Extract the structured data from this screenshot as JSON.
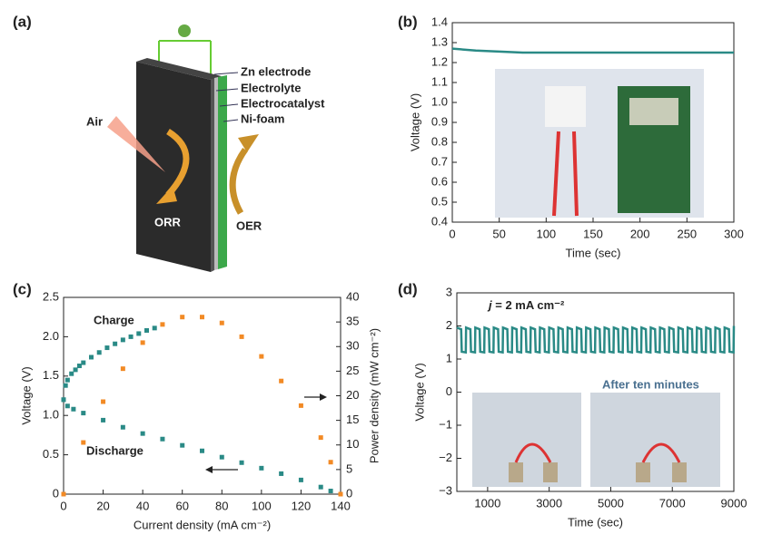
{
  "diagram": {
    "panel": "(a)",
    "layers": [
      "Zn electrode",
      "Electrolyte",
      "Electrocatalyst",
      "Ni-foam"
    ],
    "left": "Air",
    "reaction_left": "ORR",
    "reaction_right": "OER"
  },
  "chart_data": [
    {
      "type": "line",
      "panel": "(b)",
      "xlabel": "Time (sec)",
      "ylabel": "Voltage (V)",
      "color": "#2a8a86",
      "x": [
        0,
        25,
        50,
        75,
        100,
        125,
        150,
        175,
        200,
        225,
        250,
        275,
        300
      ],
      "values": [
        1.27,
        1.26,
        1.255,
        1.25,
        1.25,
        1.25,
        1.25,
        1.25,
        1.25,
        1.25,
        1.25,
        1.25,
        1.25
      ],
      "xlim": [
        0,
        300
      ],
      "xticks": [
        0,
        50,
        100,
        150,
        200,
        250,
        300
      ],
      "ylim": [
        0.4,
        1.4
      ],
      "yticks": [
        0.4,
        0.5,
        0.6,
        0.7,
        0.8,
        0.9,
        {
          "value": 1,
          "label": "1.0"
        },
        1.1,
        1.2,
        1.3,
        1.4
      ]
    },
    {
      "type": "scatter",
      "panel": "(c)",
      "xlabel": "Current density (mA cm⁻²)",
      "ylabel": "Voltage (V)",
      "y2label": "Power density (mW cm⁻²)",
      "xlim": [
        0,
        140
      ],
      "xticks": [
        0,
        20,
        40,
        60,
        80,
        100,
        120,
        140
      ],
      "ylim": [
        0,
        2.5
      ],
      "yticks": [
        0,
        0.5,
        {
          "value": 1,
          "label": "1.0"
        },
        1.5,
        {
          "value": 2,
          "label": "2.0"
        },
        2.5
      ],
      "y2lim": [
        0,
        40
      ],
      "y2ticks": [
        0,
        5,
        10,
        15,
        20,
        25,
        30,
        35,
        40
      ],
      "series": [
        {
          "name": "Charge",
          "color": "#2a8a86",
          "x": [
            0,
            1,
            2,
            4,
            6,
            8,
            10,
            14,
            18,
            22,
            26,
            30,
            34,
            38,
            42,
            46
          ],
          "values": [
            1.2,
            1.38,
            1.45,
            1.53,
            1.58,
            1.63,
            1.67,
            1.74,
            1.8,
            1.86,
            1.91,
            1.96,
            2.0,
            2.04,
            2.08,
            2.11
          ]
        },
        {
          "name": "Discharge",
          "color": "#2a8a86",
          "x": [
            0,
            2,
            5,
            10,
            20,
            30,
            40,
            50,
            60,
            70,
            80,
            90,
            100,
            110,
            120,
            130,
            135,
            140
          ],
          "values": [
            1.2,
            1.12,
            1.08,
            1.03,
            0.94,
            0.85,
            0.77,
            0.7,
            0.62,
            0.55,
            0.47,
            0.4,
            0.33,
            0.26,
            0.18,
            0.09,
            0.04,
            0
          ]
        },
        {
          "color": "#f28a25",
          "axis": "y2",
          "x": [
            0,
            10,
            20,
            30,
            40,
            50,
            60,
            70,
            80,
            90,
            100,
            110,
            120,
            130,
            135,
            140
          ],
          "values": [
            0,
            10.5,
            18.8,
            25.5,
            30.8,
            34.5,
            36,
            36,
            34.8,
            32,
            28,
            23,
            18,
            11.5,
            6.5,
            0
          ]
        }
      ]
    },
    {
      "type": "line",
      "panel": "(d)",
      "xlabel": "Time (sec)",
      "ylabel": "Voltage (V)",
      "color": "#2a8a86",
      "annotations": [
        "j",
        " = 2 mA cm⁻²",
        "After ten minutes"
      ],
      "x": [
        0,
        140,
        160,
        290,
        300,
        440,
        460,
        590,
        600,
        740,
        760,
        890,
        900,
        1040,
        1060,
        1190,
        1200,
        1340,
        1360,
        1490,
        1500,
        1640,
        1660,
        1790,
        1800,
        1940,
        1960,
        2090,
        2100,
        2240,
        2260,
        2390,
        2400,
        2540,
        2560,
        2690,
        2700,
        2840,
        2860,
        2990,
        3000,
        3140,
        3160,
        3290,
        3300,
        3440,
        3460,
        3590,
        3600,
        3740,
        3760,
        3890,
        3900,
        4040,
        4060,
        4190,
        4200,
        4340,
        4360,
        4490,
        4500,
        4640,
        4660,
        4790,
        4800,
        4940,
        4960,
        5090,
        5100,
        5240,
        5260,
        5390,
        5400,
        5540,
        5560,
        5690,
        5700,
        5840,
        5860,
        5990,
        6000,
        6140,
        6160,
        6290,
        6300,
        6440,
        6460,
        6590,
        6600,
        6740,
        6760,
        6890,
        6900,
        7040,
        7060,
        7190,
        7200,
        7340,
        7360,
        7490,
        7500,
        7640,
        7660,
        7790,
        7800,
        7940,
        7960,
        8090,
        8100,
        8240,
        8260,
        8390,
        8400,
        8540,
        8560,
        8690,
        8700,
        8840,
        8860,
        8990,
        9000
      ],
      "values": [
        1.95,
        1.9,
        1.22,
        1.2,
        1.95,
        1.9,
        1.22,
        1.2,
        1.95,
        1.9,
        1.22,
        1.2,
        1.95,
        1.9,
        1.22,
        1.2,
        1.95,
        1.9,
        1.22,
        1.2,
        1.95,
        1.9,
        1.22,
        1.2,
        1.95,
        1.9,
        1.22,
        1.2,
        1.95,
        1.9,
        1.22,
        1.2,
        1.95,
        1.9,
        1.22,
        1.2,
        1.95,
        1.9,
        1.22,
        1.2,
        1.95,
        1.9,
        1.22,
        1.2,
        1.95,
        1.9,
        1.22,
        1.2,
        1.95,
        1.9,
        1.22,
        1.2,
        1.95,
        1.9,
        1.22,
        1.2,
        1.95,
        1.9,
        1.22,
        1.2,
        1.95,
        1.9,
        1.22,
        1.2,
        1.95,
        1.9,
        1.22,
        1.2,
        1.95,
        1.9,
        1.22,
        1.2,
        1.95,
        1.9,
        1.22,
        1.2,
        1.95,
        1.9,
        1.22,
        1.2,
        1.95,
        1.9,
        1.22,
        1.2,
        1.95,
        1.9,
        1.22,
        1.2,
        1.95,
        1.9,
        1.22,
        1.2,
        1.95,
        1.9,
        1.22,
        1.2,
        1.95,
        1.9,
        1.22,
        1.2,
        1.95,
        1.9,
        1.22,
        1.2,
        1.95,
        1.9,
        1.22,
        1.2,
        1.95,
        1.9,
        1.22,
        1.2,
        1.95,
        1.9,
        1.22,
        1.2,
        1.95,
        1.9,
        1.22,
        1.2,
        2.0
      ],
      "xlim": [
        0,
        9000
      ],
      "xticks": [
        1000,
        3000,
        5000,
        7000,
        9000
      ],
      "ylim": [
        -3,
        3
      ],
      "yticks": [
        {
          "value": -3,
          "label": "−3"
        },
        {
          "value": -2,
          "label": "−2"
        },
        {
          "value": -1,
          "label": "−1"
        },
        0,
        1,
        2,
        3
      ]
    }
  ]
}
